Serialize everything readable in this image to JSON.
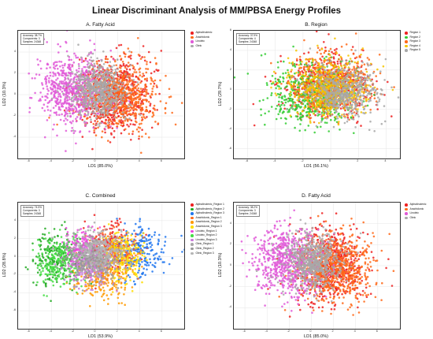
{
  "main_title": "Linear Discriminant Analysis of MM/PBSA Energy Profiles",
  "chart_data": [
    {
      "type": "scatter",
      "title": "A. Fatty Acid",
      "xlabel": "LD1 (85.0%)",
      "ylabel": "LD2 (10.3%)",
      "xlim": [
        -7,
        8
      ],
      "ylim": [
        -6,
        6
      ],
      "xticks": [
        -6,
        -4,
        -2,
        0,
        2,
        4,
        6
      ],
      "yticks": [
        -4,
        -2,
        0,
        2,
        4
      ],
      "info": [
        "Accuracy: 38.7%",
        "Components: 3",
        "Samples: 24348"
      ],
      "legend_position": "right",
      "series": [
        {
          "name": "Alphalinolenic",
          "color": "#ee2222",
          "center": [
            1.6,
            0.0
          ],
          "spread": [
            1.6,
            1.7
          ]
        },
        {
          "name": "Arachidonic",
          "color": "#ff6a1a",
          "center": [
            2.2,
            -0.2
          ],
          "spread": [
            1.7,
            1.6
          ]
        },
        {
          "name": "Linoleic",
          "color": "#e05ad8",
          "center": [
            -2.2,
            0.3
          ],
          "spread": [
            1.5,
            1.7
          ]
        },
        {
          "name": "Oleic",
          "color": "#a8a8a8",
          "center": [
            0.2,
            0.4
          ],
          "spread": [
            1.2,
            1.3
          ]
        }
      ]
    },
    {
      "type": "scatter",
      "title": "B. Region",
      "xlabel": "LD1 (56.1%)",
      "ylabel": "LD2 (29.7%)",
      "xlim": [
        -7,
        5
      ],
      "ylim": [
        -7,
        6
      ],
      "xticks": [
        -6,
        -4,
        -2,
        0,
        2,
        4
      ],
      "yticks": [
        -6,
        -4,
        -2,
        0,
        2,
        4,
        6
      ],
      "info": [
        "Accuracy: 37.9%",
        "Components: 4",
        "Samples: 24348"
      ],
      "legend_position": "right",
      "series": [
        {
          "name": "Region 1",
          "color": "#ee2222",
          "center": [
            -0.3,
            0.4
          ],
          "spread": [
            1.6,
            1.5
          ]
        },
        {
          "name": "Region 2",
          "color": "#33cc33",
          "center": [
            -1.4,
            -0.6
          ],
          "spread": [
            1.6,
            1.6
          ]
        },
        {
          "name": "Region 3",
          "color": "#ff6a1a",
          "center": [
            0.0,
            0.6
          ],
          "spread": [
            1.5,
            1.6
          ]
        },
        {
          "name": "Region 4",
          "color": "#f5c500",
          "center": [
            -0.2,
            0.2
          ],
          "spread": [
            1.4,
            1.5
          ]
        },
        {
          "name": "Region 5",
          "color": "#a8a8a8",
          "center": [
            0.9,
            -0.2
          ],
          "spread": [
            1.3,
            1.4
          ]
        }
      ]
    },
    {
      "type": "scatter",
      "title": "C. Combined",
      "xlabel": "LD1 (53.9%)",
      "ylabel": "LD2 (28.8%)",
      "xlim": [
        -7,
        8
      ],
      "ylim": [
        -8,
        6
      ],
      "xticks": [
        -6,
        -4,
        -2,
        0,
        2,
        4,
        6
      ],
      "yticks": [
        -6,
        -4,
        -2,
        0,
        2,
        4
      ],
      "info": [
        "Accuracy: 74.5%",
        "Components: 3",
        "Samples: 24348"
      ],
      "legend_position": "right",
      "series": [
        {
          "name": "Alphalinolenic_Region 1",
          "color": "#ee2222",
          "center": [
            1.5,
            1.0
          ],
          "spread": [
            1.0,
            1.3
          ]
        },
        {
          "name": "Alphalinolenic_Region 2",
          "color": "#22aa22",
          "center": [
            -3.5,
            0.0
          ],
          "spread": [
            1.1,
            1.5
          ]
        },
        {
          "name": "Alphalinolenic_Region 3",
          "color": "#2277ee",
          "center": [
            4.0,
            0.5
          ],
          "spread": [
            1.3,
            1.6
          ]
        },
        {
          "name": "Arachidonic_Region 1",
          "color": "#ff6a1a",
          "center": [
            1.5,
            0.3
          ],
          "spread": [
            1.2,
            1.4
          ]
        },
        {
          "name": "Arachidonic_Region 2",
          "color": "#ff9a00",
          "center": [
            0.6,
            -2.4
          ],
          "spread": [
            1.3,
            1.3
          ]
        },
        {
          "name": "Arachidonic_Region 3",
          "color": "#ffdd00",
          "center": [
            2.5,
            0.0
          ],
          "spread": [
            0.9,
            1.3
          ]
        },
        {
          "name": "Linoleic_Region 1",
          "color": "#ee44dd",
          "center": [
            -1.2,
            0.8
          ],
          "spread": [
            0.9,
            1.1
          ]
        },
        {
          "name": "Linoleic_Region 2",
          "color": "#44dd44",
          "center": [
            -3.2,
            -0.6
          ],
          "spread": [
            1.0,
            1.3
          ]
        },
        {
          "name": "Linoleic_Region 3",
          "color": "#c77ad9",
          "center": [
            -0.5,
            -1.0
          ],
          "spread": [
            1.0,
            1.1
          ]
        },
        {
          "name": "Oleic_Region 1",
          "color": "#a8a8a8",
          "center": [
            0.0,
            0.3
          ],
          "spread": [
            1.2,
            1.2
          ]
        },
        {
          "name": "Oleic_Region 2",
          "color": "#999999",
          "center": [
            -0.5,
            -0.6
          ],
          "spread": [
            1.1,
            1.1
          ]
        },
        {
          "name": "Oleic_Region 3",
          "color": "#b5b5b5",
          "center": [
            0.5,
            0.5
          ],
          "spread": [
            1.1,
            1.1
          ]
        }
      ]
    },
    {
      "type": "scatter",
      "title": "D. Fatty Acid",
      "xlabel": "LD1 (85.0%)",
      "ylabel": "LD2 (10.3%)",
      "xlim": [
        -7,
        8
      ],
      "ylim": [
        -6,
        6
      ],
      "xticks": [
        -6,
        -4,
        -2,
        0,
        2,
        4,
        6
      ],
      "yticks": [
        -4,
        -2,
        0,
        2,
        4
      ],
      "info": [
        "Accuracy: 38.2%",
        "Components: 3",
        "Samples: 24348"
      ],
      "legend_position": "right",
      "series": [
        {
          "name": "Alphalinolenic",
          "color": "#ee2222",
          "center": [
            1.6,
            0.0
          ],
          "spread": [
            1.6,
            1.7
          ]
        },
        {
          "name": "Arachidonic",
          "color": "#ff6a1a",
          "center": [
            2.2,
            -0.2
          ],
          "spread": [
            1.7,
            1.6
          ]
        },
        {
          "name": "Linoleic",
          "color": "#e05ad8",
          "center": [
            -2.2,
            0.3
          ],
          "spread": [
            1.5,
            1.7
          ]
        },
        {
          "name": "Oleic",
          "color": "#a8a8a8",
          "center": [
            0.2,
            0.4
          ],
          "spread": [
            1.2,
            1.3
          ]
        }
      ]
    }
  ]
}
